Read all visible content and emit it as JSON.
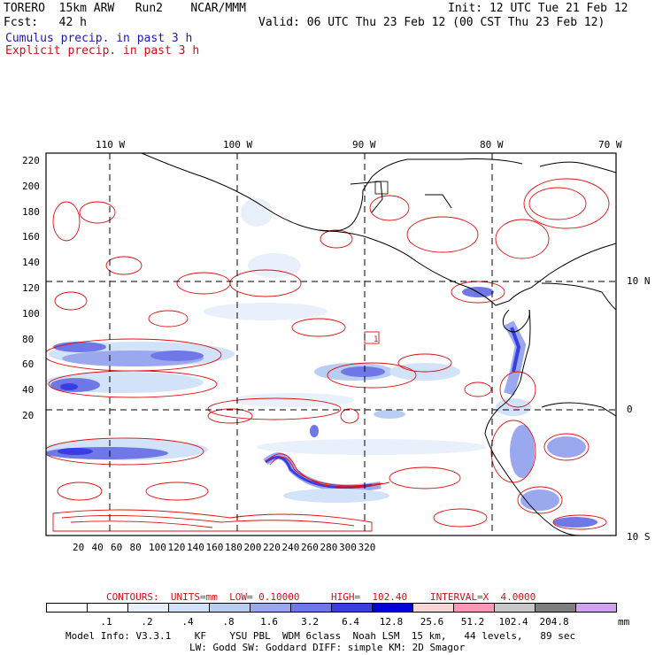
{
  "header": {
    "line1_left": "TORERO  15km ARW   Run2    NCAR/MMM",
    "line1_right": "Init: 12 UTC Tue 21 Feb 12",
    "line2_left": "Fcst:   42 h",
    "line2_right": "Valid: 06 UTC Thu 23 Feb 12 (00 CST Thu 23 Feb 12)",
    "legend_blue": "Cumulus precip. in past 3 h",
    "legend_red": "Explicit precip. in past 3 h"
  },
  "map": {
    "top_lon_labels": [
      "110 W",
      "100 W",
      "90 W",
      "80 W",
      "70 W"
    ],
    "right_lat_labels": [
      "10 N",
      "0",
      "10 S"
    ],
    "y_ticks": [
      "220",
      "200",
      "180",
      "160",
      "140",
      "120",
      "100",
      "80",
      "60",
      "40",
      "20"
    ],
    "x_ticks": [
      "20",
      "40",
      "60",
      "80",
      "100",
      "120",
      "140",
      "160",
      "180",
      "200",
      "220",
      "240",
      "260",
      "280",
      "300",
      "320"
    ],
    "box_label": "1"
  },
  "contours_line": {
    "label": "CONTOURS:  UNITS=mm  LOW= 0.10000",
    "high": "HIGH=  102.40",
    "interval": "INTERVAL=X  4.0000"
  },
  "colorbar": {
    "colors": [
      "#ffffff",
      "#ffffff",
      "#e8f0fb",
      "#d2e2f8",
      "#b8cdf2",
      "#9aa8ee",
      "#6f78e6",
      "#3a3ce4",
      "#0000d8",
      "#f7d6d6",
      "#f79ab8",
      "#c8c8c8",
      "#7f7f7f",
      "#cfa3f2"
    ],
    "labels": [
      ".1",
      ".2",
      ".4",
      ".8",
      "1.6",
      "3.2",
      "6.4",
      "12.8",
      "25.6",
      "51.2",
      "102.4",
      "204.8"
    ],
    "unit": "mm"
  },
  "footer": {
    "line1": "Model Info: V3.3.1    KF    YSU PBL  WDM 6class  Noah LSM  15 km,   44 levels,   89 sec",
    "line2": "LW: Godd SW: Goddard DIFF: simple KM: 2D Smagor"
  }
}
